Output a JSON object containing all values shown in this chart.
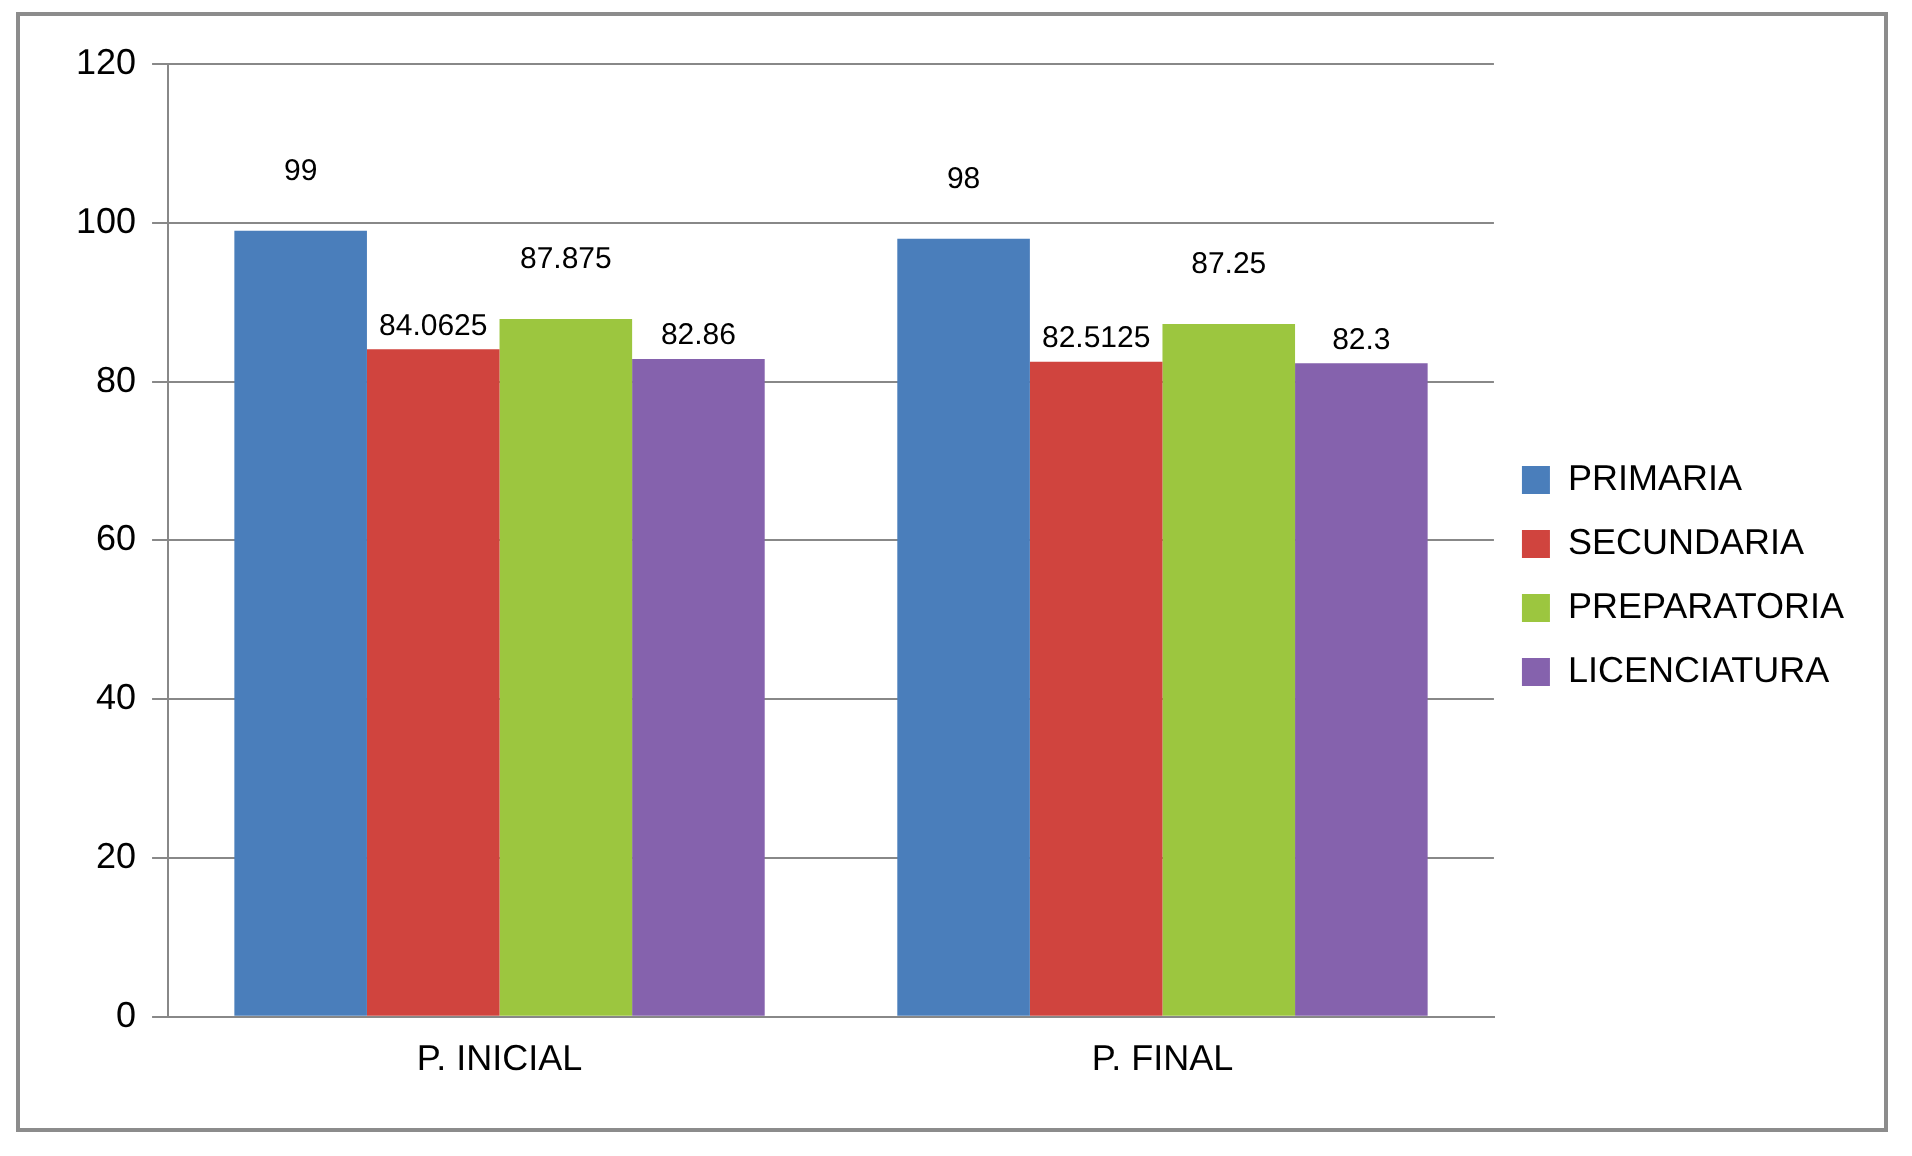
{
  "chart_data": {
    "type": "bar",
    "categories": [
      "P. INICIAL",
      "P. FINAL"
    ],
    "series": [
      {
        "name": "PRIMARIA",
        "color": "#4a7ebb",
        "values": [
          99,
          98
        ]
      },
      {
        "name": "SECUNDARIA",
        "color": "#d0443e",
        "values": [
          84.0625,
          82.5125
        ]
      },
      {
        "name": "PREPARATORIA",
        "color": "#9cc63f",
        "values": [
          87.875,
          87.25
        ]
      },
      {
        "name": "LICENCIATURA",
        "color": "#8562ad",
        "values": [
          82.86,
          82.3
        ]
      }
    ],
    "ylim": [
      0,
      120
    ],
    "yticks": [
      0,
      20,
      40,
      60,
      80,
      100,
      120
    ],
    "grid": "y",
    "legend": "right",
    "data_labels": true
  }
}
